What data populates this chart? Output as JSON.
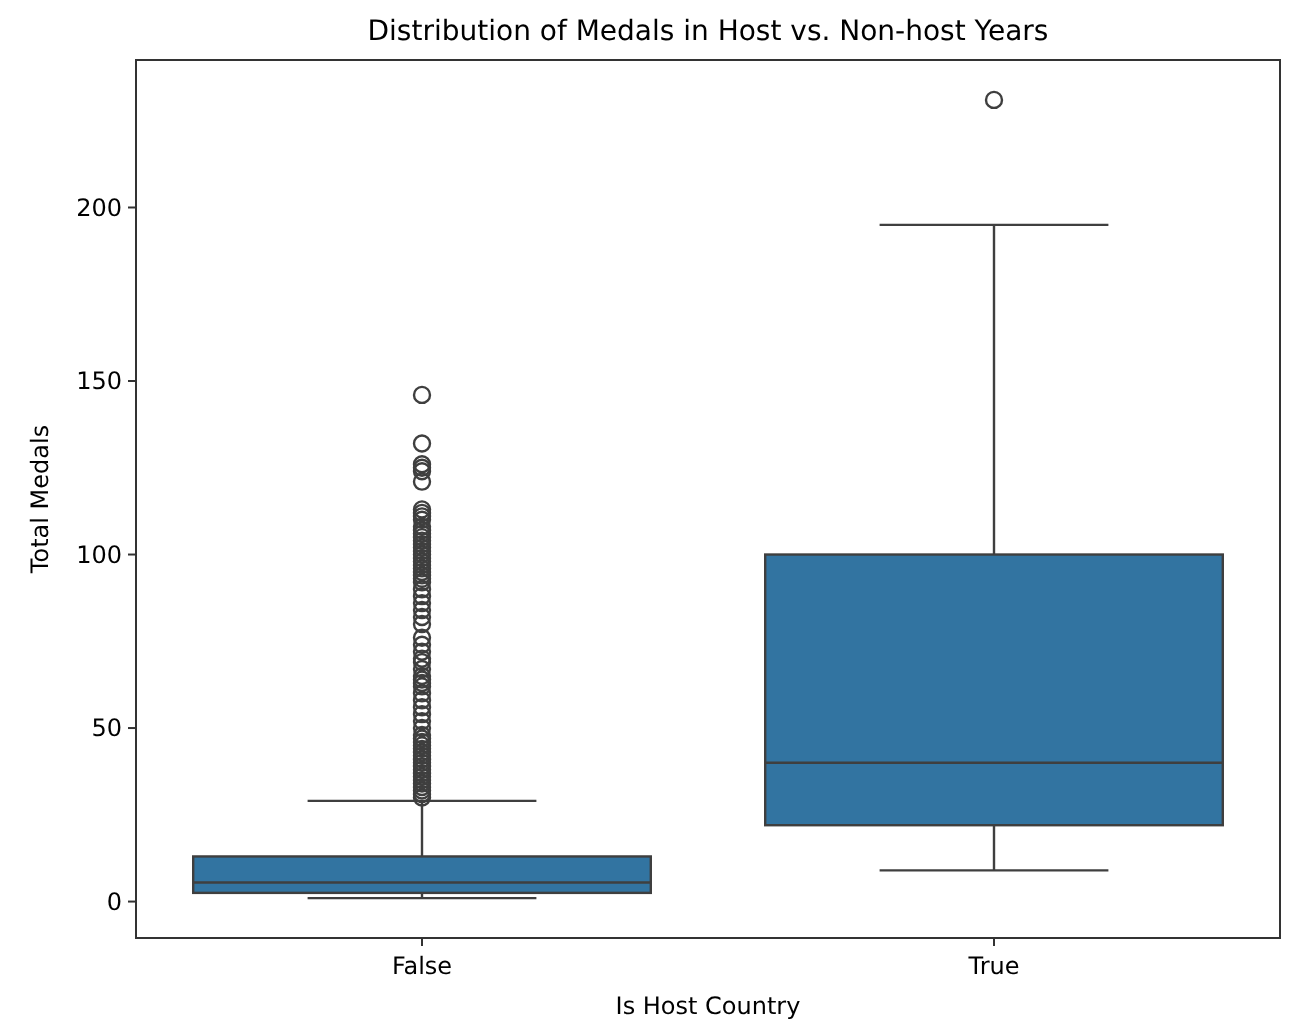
{
  "chart_data": {
    "type": "box",
    "title": "Distribution of Medals in Host vs. Non-host Years",
    "xlabel": "Is Host Country",
    "ylabel": "Total Medals",
    "categories": [
      "False",
      "True"
    ],
    "color": "#3274a1",
    "ylim": [
      -10.5,
      242.5
    ],
    "yticks": [
      0,
      50,
      100,
      150,
      200
    ],
    "grid": false,
    "boxes": [
      {
        "low": 1,
        "q1": 2.5,
        "median": 5.5,
        "q3": 13,
        "high": 29,
        "outliers": [
          30,
          31,
          32,
          33,
          34,
          35,
          36,
          37,
          38,
          39,
          40,
          41,
          42,
          43,
          44,
          45,
          46,
          47,
          48,
          50,
          52,
          54,
          56,
          58,
          60,
          62,
          63,
          64,
          65,
          67,
          69,
          70,
          72,
          74,
          76,
          80,
          82,
          84,
          86,
          88,
          90,
          92,
          93,
          94,
          95,
          96,
          97,
          98,
          99,
          100,
          101,
          102,
          103,
          104,
          105,
          106,
          107,
          108,
          110,
          111,
          112,
          113,
          121,
          124,
          125,
          126,
          132,
          146
        ]
      },
      {
        "low": 9,
        "q1": 22,
        "median": 40,
        "q3": 100,
        "high": 195,
        "outliers": [
          231
        ]
      }
    ]
  }
}
